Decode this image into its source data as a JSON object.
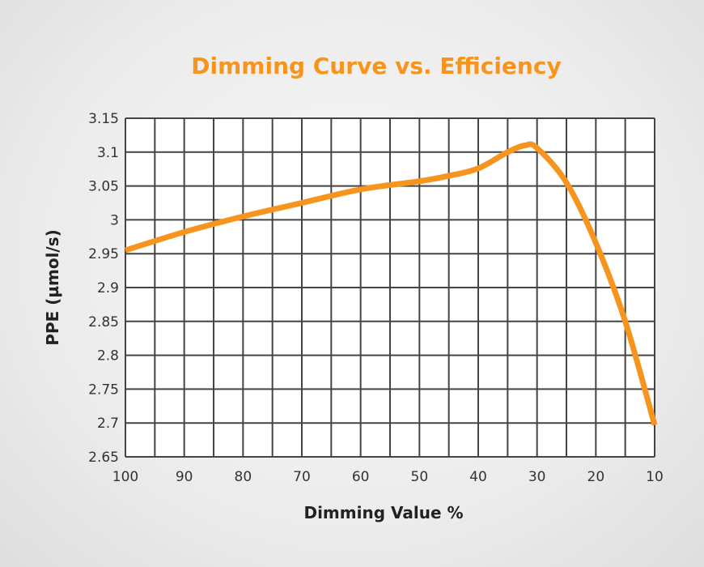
{
  "chart_data": {
    "type": "line",
    "title": "Dimming Curve vs. Efficiency",
    "xlabel": "Dimming Value %",
    "ylabel": "PPE (µmol/s)",
    "xlim": [
      100,
      10
    ],
    "ylim": [
      2.65,
      3.15
    ],
    "x_reversed": true,
    "grid": true,
    "x_ticks": [
      100,
      90,
      80,
      70,
      60,
      50,
      40,
      30,
      20,
      10
    ],
    "y_ticks": [
      "3.15",
      "3.1",
      "3.05",
      "3",
      "2.95",
      "2.9",
      "2.85",
      "2.8",
      "2.75",
      "2.7",
      "2.65"
    ],
    "series": [
      {
        "color": "#f7941d",
        "x": [
          100,
          90,
          80,
          70,
          60,
          50,
          45,
          40,
          35,
          32,
          30,
          25,
          20,
          15,
          10
        ],
        "y": [
          2.955,
          2.982,
          3.005,
          3.025,
          3.045,
          3.057,
          3.065,
          3.076,
          3.1,
          3.11,
          3.106,
          3.055,
          2.966,
          2.85,
          2.697
        ]
      }
    ],
    "colors": {
      "title": "#f7941d",
      "grid": "#444444",
      "plot_background": "#ffffff"
    }
  }
}
